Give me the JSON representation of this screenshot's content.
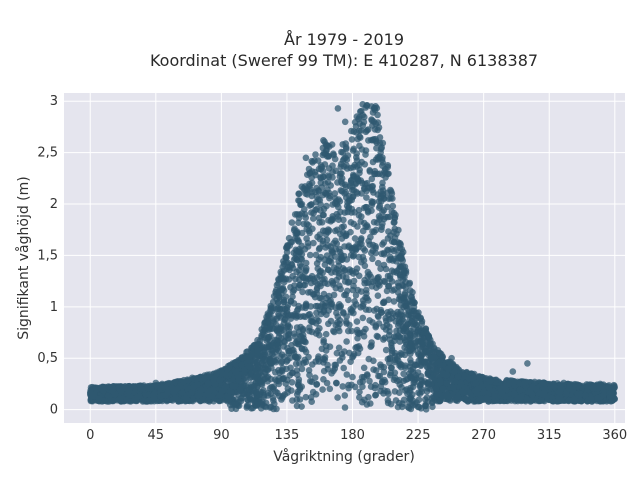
{
  "chart_data": {
    "type": "scatter",
    "title": "År 1979 - 2019",
    "subtitle": "Koordinat (Sweref 99 TM): E 410287, N 6138387",
    "xlabel": "Vågriktning (grader)",
    "ylabel": "Signifikant våghöjd (m)",
    "xlim": [
      -18,
      367
    ],
    "ylim": [
      -0.13,
      3.08
    ],
    "xticks": [
      {
        "value": 0,
        "label": "0"
      },
      {
        "value": 45,
        "label": "45"
      },
      {
        "value": 90,
        "label": "90"
      },
      {
        "value": 135,
        "label": "135"
      },
      {
        "value": 180,
        "label": "180"
      },
      {
        "value": 225,
        "label": "225"
      },
      {
        "value": 270,
        "label": "270"
      },
      {
        "value": 315,
        "label": "315"
      },
      {
        "value": 360,
        "label": "360"
      }
    ],
    "yticks": [
      {
        "value": 0,
        "label": "0"
      },
      {
        "value": 0.5,
        "label": "0,5"
      },
      {
        "value": 1,
        "label": "1"
      },
      {
        "value": 1.5,
        "label": "1,5"
      },
      {
        "value": 2,
        "label": "2"
      },
      {
        "value": 2.5,
        "label": "2,5"
      },
      {
        "value": 3,
        "label": "3"
      }
    ],
    "grid": true,
    "marker_color": "#2f5870",
    "background_color": "#e5e5ee",
    "grid_color": "#ffffff",
    "envelope": [
      {
        "x": 0,
        "y": 0.22
      },
      {
        "x": 45,
        "y": 0.24
      },
      {
        "x": 70,
        "y": 0.3
      },
      {
        "x": 90,
        "y": 0.38
      },
      {
        "x": 105,
        "y": 0.52
      },
      {
        "x": 115,
        "y": 0.7
      },
      {
        "x": 125,
        "y": 1.05
      },
      {
        "x": 132,
        "y": 1.45
      },
      {
        "x": 138,
        "y": 1.85
      },
      {
        "x": 145,
        "y": 2.2
      },
      {
        "x": 152,
        "y": 2.45
      },
      {
        "x": 158,
        "y": 2.62
      },
      {
        "x": 165,
        "y": 2.6
      },
      {
        "x": 172,
        "y": 2.55
      },
      {
        "x": 180,
        "y": 2.75
      },
      {
        "x": 185,
        "y": 2.9
      },
      {
        "x": 191,
        "y": 2.98
      },
      {
        "x": 197,
        "y": 2.95
      },
      {
        "x": 203,
        "y": 2.5
      },
      {
        "x": 208,
        "y": 2.05
      },
      {
        "x": 213,
        "y": 1.65
      },
      {
        "x": 220,
        "y": 1.2
      },
      {
        "x": 228,
        "y": 0.85
      },
      {
        "x": 240,
        "y": 0.55
      },
      {
        "x": 255,
        "y": 0.38
      },
      {
        "x": 275,
        "y": 0.3
      },
      {
        "x": 300,
        "y": 0.27
      },
      {
        "x": 330,
        "y": 0.25
      },
      {
        "x": 360,
        "y": 0.24
      }
    ],
    "outliers": [
      {
        "x": 170,
        "y": 2.93
      },
      {
        "x": 187,
        "y": 2.97
      },
      {
        "x": 193,
        "y": 2.95
      },
      {
        "x": 175,
        "y": 2.8
      },
      {
        "x": 160,
        "y": 2.62
      },
      {
        "x": 196,
        "y": 2.78
      },
      {
        "x": 148,
        "y": 2.45
      },
      {
        "x": 183,
        "y": 2.85
      },
      {
        "x": 200,
        "y": 2.55
      },
      {
        "x": 300,
        "y": 0.45
      },
      {
        "x": 290,
        "y": 0.37
      },
      {
        "x": 305,
        "y": 0.27
      },
      {
        "x": 311,
        "y": 0.26
      },
      {
        "x": 325,
        "y": 0.26
      },
      {
        "x": 350,
        "y": 0.25
      },
      {
        "x": 115,
        "y": 0.58
      },
      {
        "x": 108,
        "y": 0.5
      },
      {
        "x": 248,
        "y": 0.5
      },
      {
        "x": 260,
        "y": 0.3
      },
      {
        "x": 85,
        "y": 0.3
      },
      {
        "x": 100,
        "y": 0.36
      },
      {
        "x": 240,
        "y": 0.55
      },
      {
        "x": 45,
        "y": 0.26
      },
      {
        "x": 70,
        "y": 0.31
      },
      {
        "x": 275,
        "y": 0.28
      }
    ]
  }
}
